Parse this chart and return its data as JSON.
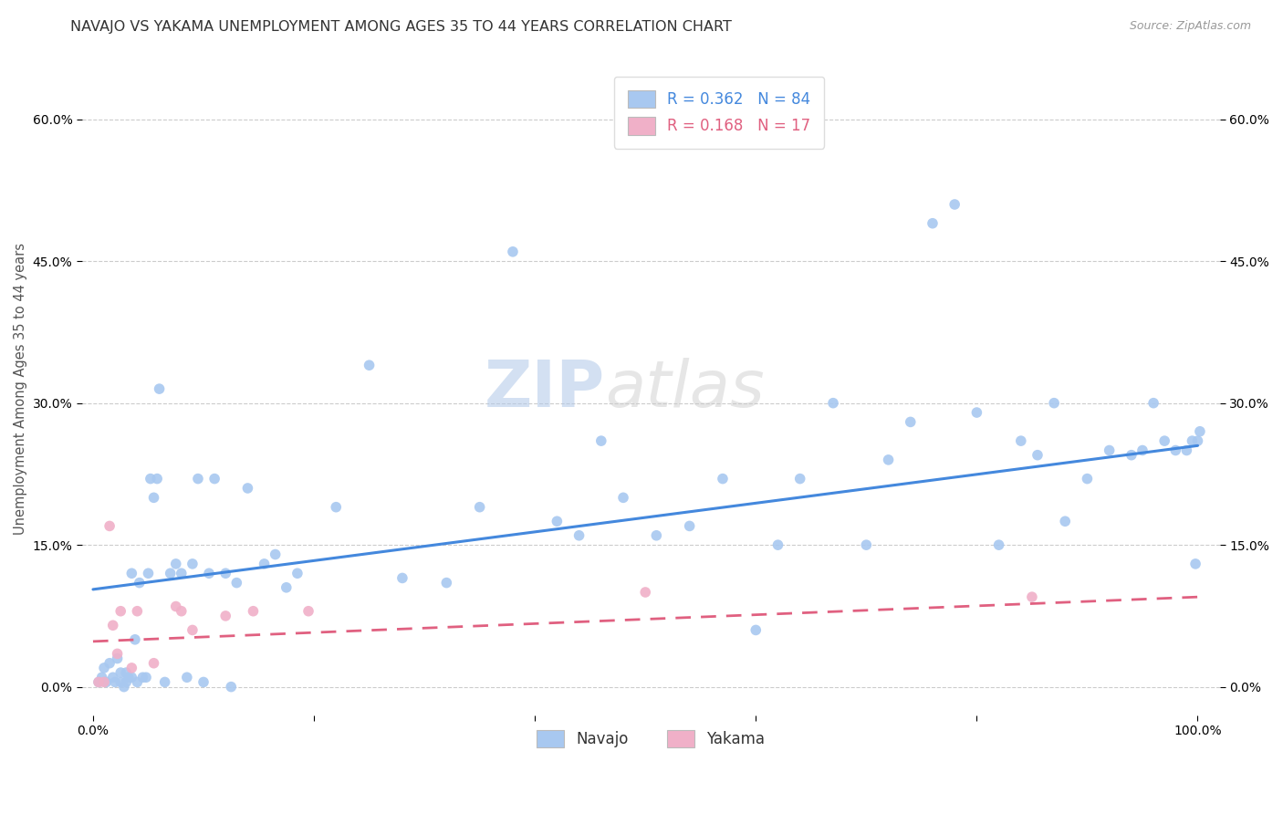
{
  "title": "NAVAJO VS YAKAMA UNEMPLOYMENT AMONG AGES 35 TO 44 YEARS CORRELATION CHART",
  "source": "Source: ZipAtlas.com",
  "ylabel": "Unemployment Among Ages 35 to 44 years",
  "navajo_R": 0.362,
  "navajo_N": 84,
  "yakama_R": 0.168,
  "yakama_N": 17,
  "navajo_color": "#a8c8f0",
  "yakama_color": "#f0b0c8",
  "navajo_line_color": "#4488dd",
  "yakama_line_color": "#e06080",
  "background_color": "#ffffff",
  "grid_color": "#cccccc",
  "xlim": [
    -0.01,
    1.02
  ],
  "ylim": [
    -0.03,
    0.66
  ],
  "xtick_positions": [
    0.0,
    0.2,
    0.4,
    0.6,
    0.8,
    1.0
  ],
  "xticklabels_ends": [
    "0.0%",
    "100.0%"
  ],
  "ytick_positions": [
    0.0,
    0.15,
    0.3,
    0.45,
    0.6
  ],
  "ytick_labels": [
    "0.0%",
    "15.0%",
    "30.0%",
    "45.0%",
    "60.0%"
  ],
  "navajo_x": [
    0.005,
    0.008,
    0.01,
    0.012,
    0.015,
    0.018,
    0.02,
    0.022,
    0.025,
    0.025,
    0.028,
    0.03,
    0.03,
    0.032,
    0.035,
    0.035,
    0.038,
    0.04,
    0.042,
    0.045,
    0.048,
    0.05,
    0.052,
    0.055,
    0.058,
    0.06,
    0.065,
    0.07,
    0.075,
    0.08,
    0.085,
    0.09,
    0.095,
    0.1,
    0.105,
    0.11,
    0.12,
    0.125,
    0.13,
    0.14,
    0.155,
    0.165,
    0.175,
    0.185,
    0.22,
    0.25,
    0.28,
    0.32,
    0.35,
    0.38,
    0.42,
    0.44,
    0.46,
    0.48,
    0.51,
    0.54,
    0.57,
    0.6,
    0.62,
    0.64,
    0.67,
    0.7,
    0.72,
    0.74,
    0.76,
    0.78,
    0.8,
    0.82,
    0.84,
    0.855,
    0.87,
    0.88,
    0.9,
    0.92,
    0.94,
    0.95,
    0.96,
    0.97,
    0.98,
    0.99,
    0.995,
    0.998,
    1.0,
    1.002
  ],
  "navajo_y": [
    0.005,
    0.01,
    0.02,
    0.005,
    0.025,
    0.01,
    0.005,
    0.03,
    0.005,
    0.015,
    0.0,
    0.005,
    0.015,
    0.01,
    0.01,
    0.12,
    0.05,
    0.005,
    0.11,
    0.01,
    0.01,
    0.12,
    0.22,
    0.2,
    0.22,
    0.315,
    0.005,
    0.12,
    0.13,
    0.12,
    0.01,
    0.13,
    0.22,
    0.005,
    0.12,
    0.22,
    0.12,
    0.0,
    0.11,
    0.21,
    0.13,
    0.14,
    0.105,
    0.12,
    0.19,
    0.34,
    0.115,
    0.11,
    0.19,
    0.46,
    0.175,
    0.16,
    0.26,
    0.2,
    0.16,
    0.17,
    0.22,
    0.06,
    0.15,
    0.22,
    0.3,
    0.15,
    0.24,
    0.28,
    0.49,
    0.51,
    0.29,
    0.15,
    0.26,
    0.245,
    0.3,
    0.175,
    0.22,
    0.25,
    0.245,
    0.25,
    0.3,
    0.26,
    0.25,
    0.25,
    0.26,
    0.13,
    0.26,
    0.27
  ],
  "yakama_x": [
    0.005,
    0.01,
    0.015,
    0.018,
    0.022,
    0.025,
    0.035,
    0.04,
    0.055,
    0.075,
    0.08,
    0.09,
    0.12,
    0.145,
    0.195,
    0.5,
    0.85
  ],
  "yakama_y": [
    0.005,
    0.005,
    0.17,
    0.065,
    0.035,
    0.08,
    0.02,
    0.08,
    0.025,
    0.085,
    0.08,
    0.06,
    0.075,
    0.08,
    0.08,
    0.1,
    0.095
  ],
  "navajo_trend": [
    0.103,
    0.255
  ],
  "yakama_trend": [
    0.048,
    0.095
  ],
  "watermark_zip": "ZIP",
  "watermark_atlas": "atlas",
  "marker_size": 70,
  "title_fontsize": 11.5,
  "label_fontsize": 10.5,
  "tick_fontsize": 10,
  "legend_fontsize": 12
}
